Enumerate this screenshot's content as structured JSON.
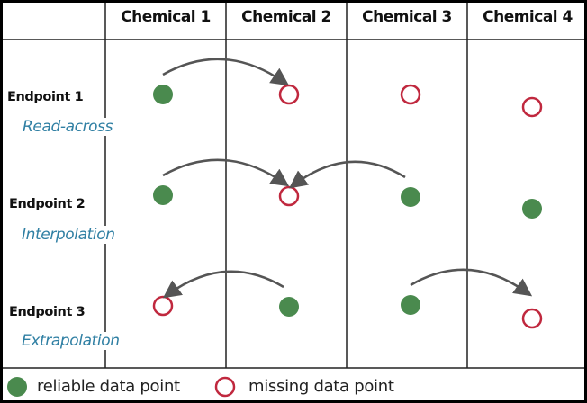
{
  "chemicals": [
    "Chemical 1",
    "Chemical 2",
    "Chemical 3",
    "Chemical 4"
  ],
  "endpoints": [
    {
      "label": "Endpoint 1",
      "method": "Read-across",
      "points": [
        "reliable",
        "missing",
        "missing",
        "missing"
      ],
      "arrows": [
        {
          "from": 1,
          "to": 2
        }
      ]
    },
    {
      "label": "Endpoint 2",
      "method": "Interpolation",
      "points": [
        "reliable",
        "missing",
        "reliable",
        "reliable"
      ],
      "arrows": [
        {
          "from": 1,
          "to": 2
        },
        {
          "from": 3,
          "to": 2
        }
      ]
    },
    {
      "label": "Endpoint 3",
      "method": "Extrapolation",
      "points": [
        "missing",
        "reliable",
        "reliable",
        "missing"
      ],
      "arrows": [
        {
          "from": 2,
          "to": 1
        },
        {
          "from": 3,
          "to": 4
        }
      ]
    }
  ],
  "legend": {
    "reliable": "reliable data point",
    "missing": "missing data point"
  },
  "colors": {
    "reliable": "#4a8a4e",
    "missing": "#c0283e",
    "arrow": "#555555",
    "method": "#2f7fa3"
  }
}
